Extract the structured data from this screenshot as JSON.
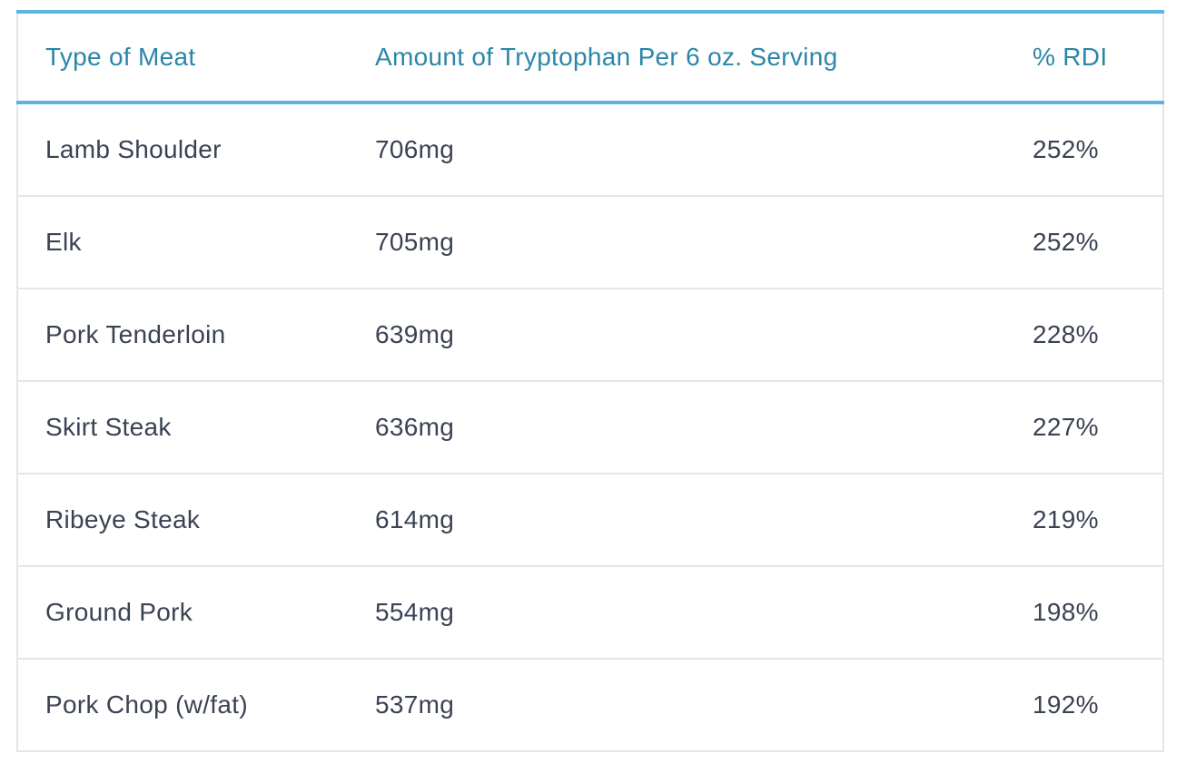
{
  "table": {
    "headers": {
      "meat": "Type of Meat",
      "amount": "Amount of Tryptophan Per 6 oz. Serving",
      "rdi": "% RDI"
    },
    "rows": [
      {
        "meat": "Lamb Shoulder",
        "amount": "706mg",
        "rdi": "252%"
      },
      {
        "meat": "Elk",
        "amount": "705mg",
        "rdi": "252%"
      },
      {
        "meat": "Pork Tenderloin",
        "amount": "639mg",
        "rdi": "228%"
      },
      {
        "meat": "Skirt Steak",
        "amount": "636mg",
        "rdi": "227%"
      },
      {
        "meat": "Ribeye Steak",
        "amount": "614mg",
        "rdi": "219%"
      },
      {
        "meat": "Ground Pork",
        "amount": "554mg",
        "rdi": "198%"
      },
      {
        "meat": "Pork Chop (w/fat)",
        "amount": "537mg",
        "rdi": "192%"
      }
    ]
  },
  "colors": {
    "header_text": "#2b86a9",
    "accent_border": "#5ab6df",
    "body_text": "#3b4253",
    "row_border": "#e6e6e6"
  }
}
